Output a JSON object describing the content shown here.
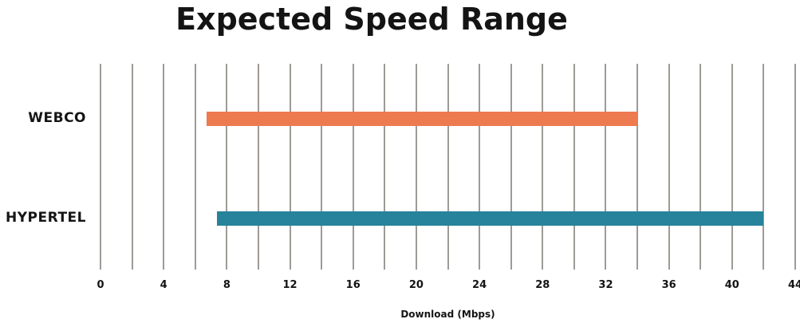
{
  "chart_data": {
    "type": "bar",
    "subtype": "horizontal-range-bar",
    "title": "Expected Speed Range",
    "xlabel": "Download (Mbps)",
    "categories": [
      "WEBCO",
      "HYPERTEL"
    ],
    "series": [
      {
        "name": "WEBCO",
        "range_mbps": [
          6.7,
          34
        ],
        "color": "#EE7A50"
      },
      {
        "name": "HYPERTEL",
        "range_mbps": [
          7.4,
          42
        ],
        "color": "#27839B"
      }
    ],
    "xlim": [
      0,
      44
    ],
    "x_gridline_step": 2,
    "x_tick_label_step": 4,
    "x_tick_labels": [
      "0",
      "4",
      "8",
      "12",
      "16",
      "20",
      "24",
      "28",
      "32",
      "36",
      "40",
      "44"
    ],
    "grid": true,
    "legend": false,
    "row_center_fractions": [
      0.267,
      0.75
    ],
    "colors": {
      "gridline": "#9E9A96",
      "text": "#141414",
      "background": "#FFFFFF"
    }
  }
}
